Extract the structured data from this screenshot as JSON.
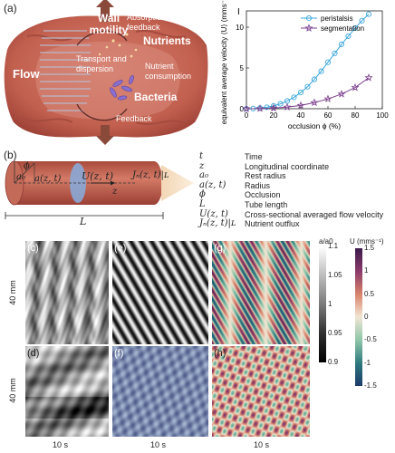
{
  "panel_a": {
    "letter": "(a)",
    "labels": {
      "wall_motility": "Wall motility",
      "absorption": "Absorption & feedback",
      "nutrients": "Nutrients",
      "flow": "Flow",
      "transport": "Transport and dispersion",
      "nutrient_consumption": "Nutrient consumption",
      "bacteria": "Bacteria",
      "feedback": "Feedback"
    },
    "colors": {
      "tissue": "#c9695c",
      "tissue_dark": "#8e3b33",
      "arrow": "#8a4a3a"
    }
  },
  "chart_data": {
    "type": "line",
    "letter": "I",
    "xlabel": "occlusion ϕ (%)",
    "ylabel": "equivalent average velocity ⟨U⟩ (mms⁻¹)",
    "xlim": [
      0,
      100
    ],
    "ylim": [
      0,
      12
    ],
    "xticks": [
      0,
      20,
      40,
      60,
      80,
      100
    ],
    "yticks": [
      0,
      5,
      10
    ],
    "legend_position": "top-right",
    "series": [
      {
        "name": "peristalsis",
        "color": "#3aa6dd",
        "marker": "circle",
        "x": [
          0,
          5,
          10,
          15,
          20,
          25,
          30,
          35,
          40,
          45,
          50,
          55,
          60,
          65,
          70,
          75,
          80,
          85,
          90
        ],
        "y": [
          0,
          0.02,
          0.08,
          0.18,
          0.35,
          0.6,
          0.95,
          1.4,
          2.0,
          2.7,
          3.6,
          4.6,
          5.7,
          6.8,
          7.9,
          8.9,
          9.9,
          10.8,
          11.6
        ]
      },
      {
        "name": "segmentation",
        "color": "#7b3d8c",
        "marker": "star",
        "x": [
          0,
          10,
          20,
          30,
          40,
          50,
          60,
          70,
          80,
          90
        ],
        "y": [
          0,
          0.02,
          0.08,
          0.2,
          0.4,
          0.75,
          1.2,
          1.8,
          2.6,
          3.8
        ]
      }
    ]
  },
  "panel_b": {
    "letter": "(b)",
    "tube_labels": {
      "a0": "a₀",
      "phi": "ϕ",
      "a_zt": "a(z, t)",
      "U_zt": "U(z, t)",
      "z": "z",
      "JN": "Jₙ(z, t)|ʟ",
      "L": "L"
    },
    "legend": [
      {
        "sym": "t",
        "desc": "Time"
      },
      {
        "sym": "z",
        "desc": "Longitudinal coordinate"
      },
      {
        "sym": "a₀",
        "desc": "Rest radius"
      },
      {
        "sym": "a(z, t)",
        "desc": "Radius"
      },
      {
        "sym": "ϕ",
        "desc": "Occlusion"
      },
      {
        "sym": "L",
        "desc": "Tube length"
      },
      {
        "sym": "U(z, t)",
        "desc": "Cross-sectional averaged flow velocity"
      },
      {
        "sym": "Jₙ(z, t)|ʟ",
        "desc": "Nutrient outflux"
      }
    ]
  },
  "heatmaps": {
    "letters": [
      "(c)",
      "(e)",
      "(g)",
      "(d)",
      "(f)",
      "(h)"
    ],
    "row_label": "40 mm",
    "col_label": "10 s",
    "colorbar_a": {
      "title": "a/a0",
      "ticks": [
        "1.1",
        "1.05",
        "1",
        "0.95",
        "0.9"
      ]
    },
    "colorbar_u": {
      "title": "U (mms⁻¹)",
      "ticks": [
        "1.5",
        "1",
        "0.5",
        "0",
        "-0.5",
        "-1",
        "-1.5"
      ]
    }
  }
}
